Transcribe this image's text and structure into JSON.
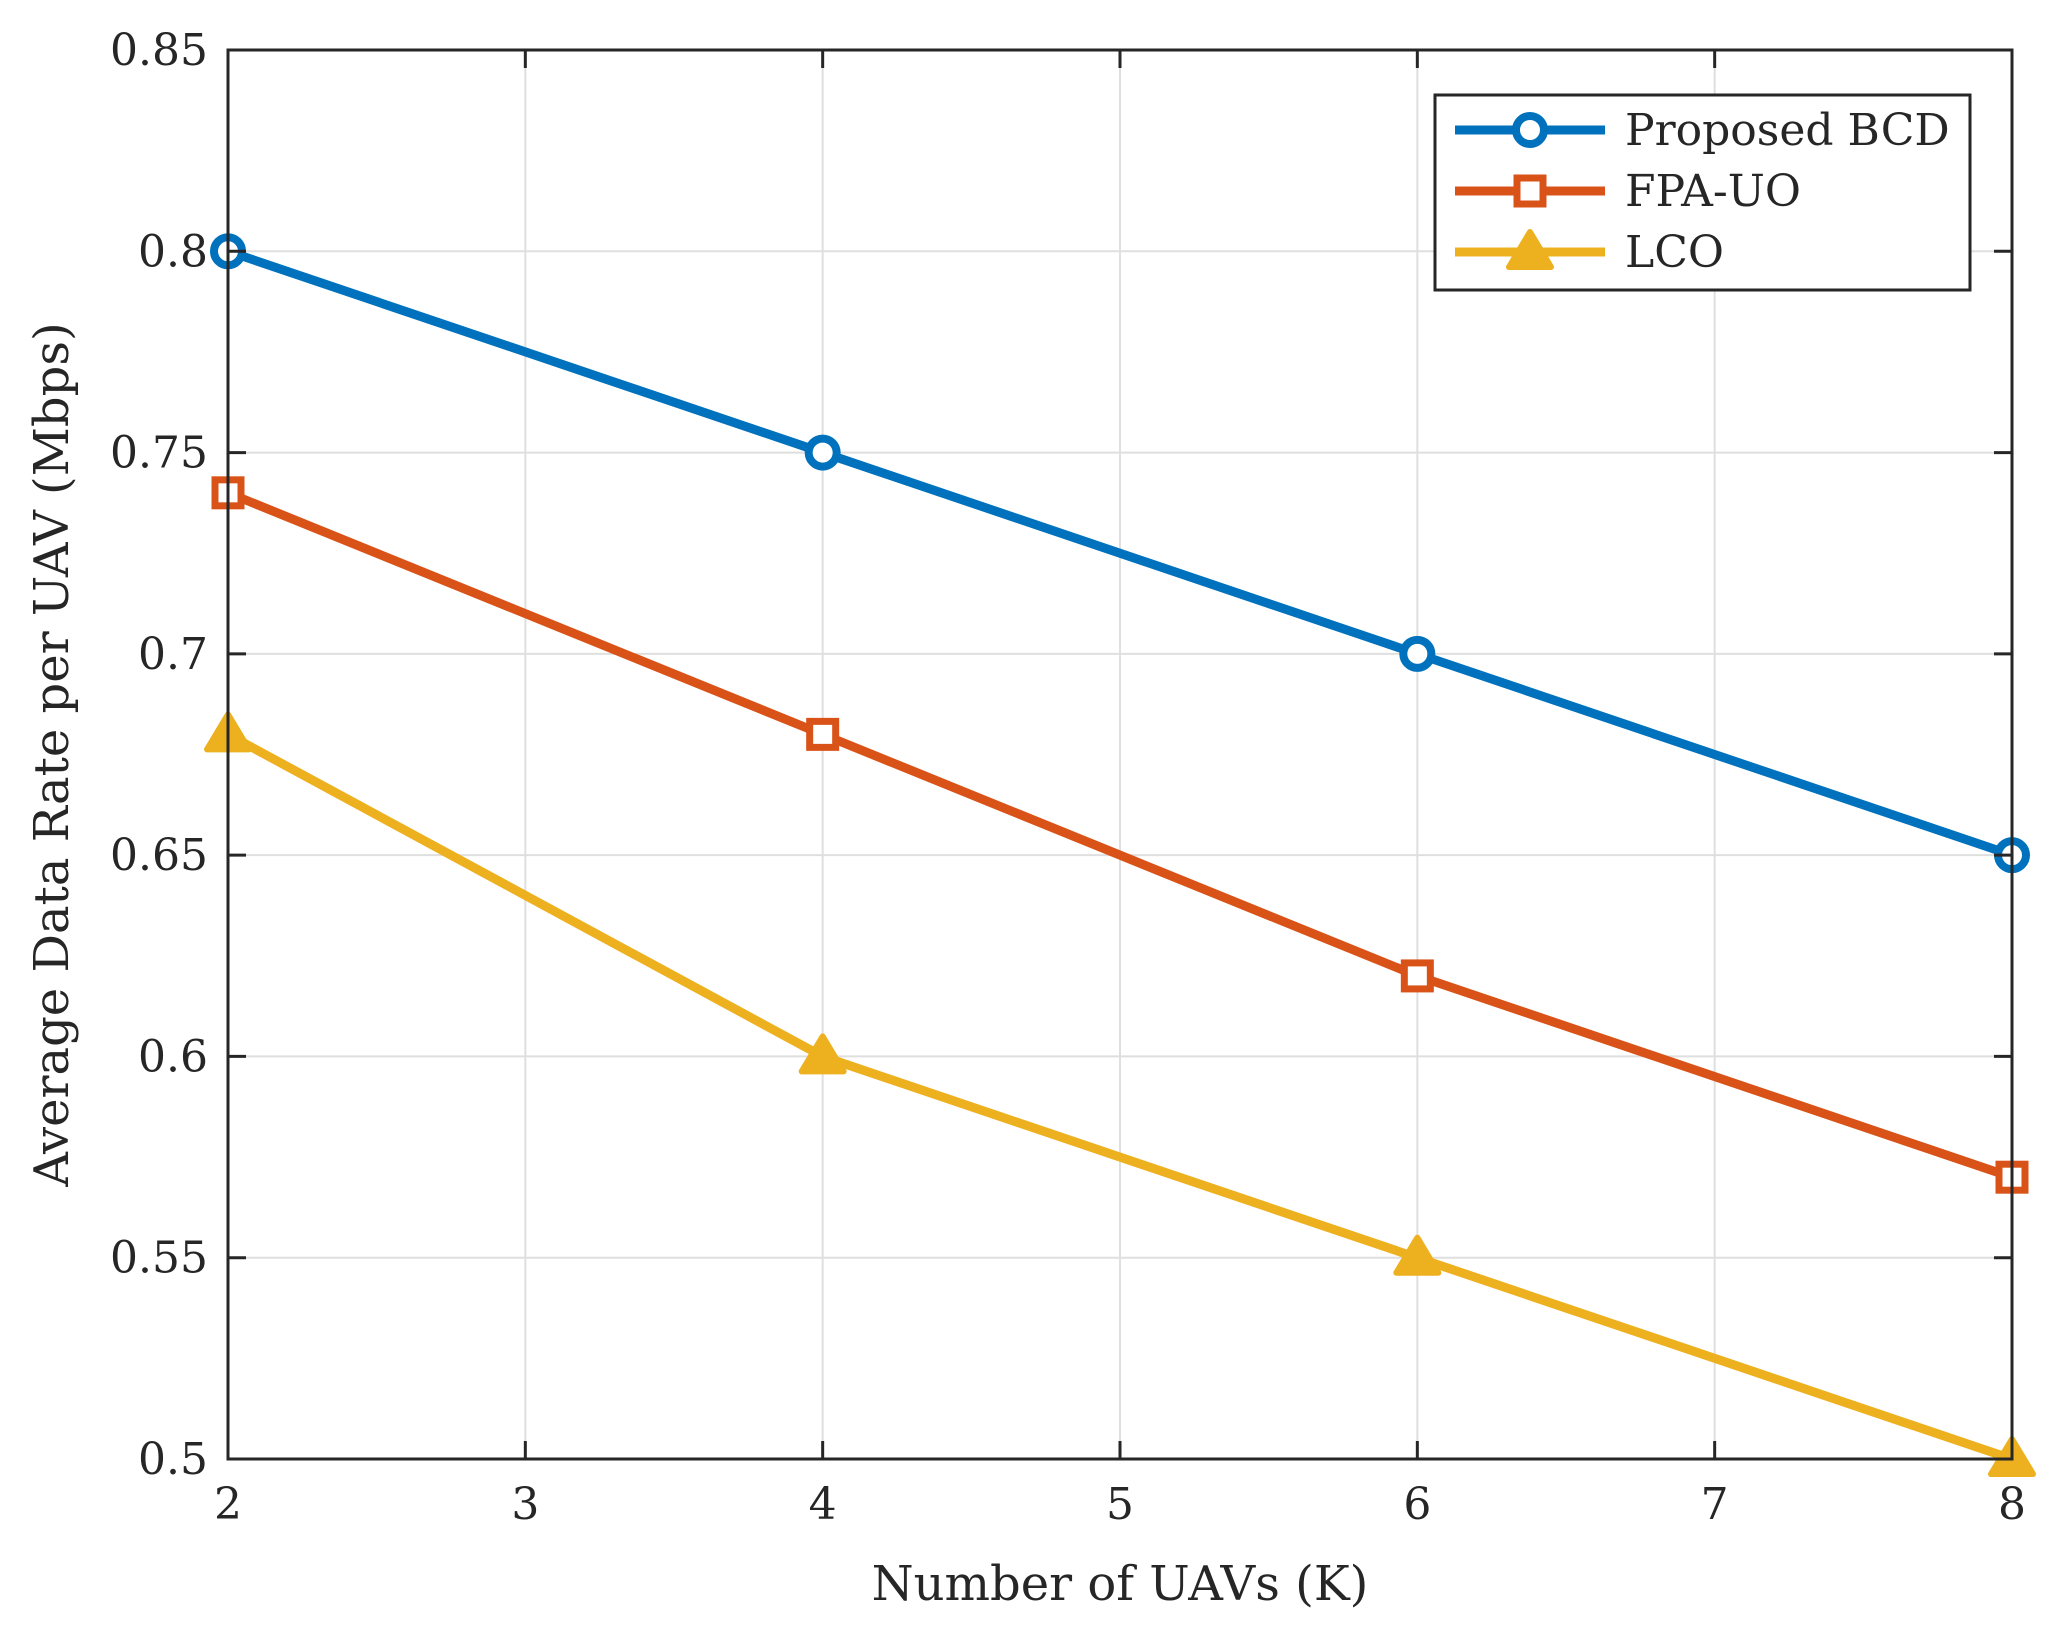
{
  "chart_data": {
    "type": "line",
    "xlabel": "Number of UAVs (K)",
    "ylabel": "Average Data Rate per UAV (Mbps)",
    "xlim": [
      2,
      8
    ],
    "ylim": [
      0.5,
      0.85
    ],
    "xticks": [
      "2",
      "3",
      "4",
      "5",
      "6",
      "7",
      "8"
    ],
    "yticks": [
      "0.5",
      "0.55",
      "0.6",
      "0.65",
      "0.7",
      "0.75",
      "0.8",
      "0.85"
    ],
    "x": [
      2,
      4,
      6,
      8
    ],
    "grid": true,
    "legend_position": "top-right",
    "series": [
      {
        "name": "Proposed BCD",
        "values": [
          0.8,
          0.75,
          0.7,
          0.65
        ],
        "color": "#0072BD",
        "marker": "circle"
      },
      {
        "name": "FPA-UO",
        "values": [
          0.74,
          0.68,
          0.62,
          0.57
        ],
        "color": "#D95319",
        "marker": "square"
      },
      {
        "name": "LCO",
        "values": [
          0.68,
          0.6,
          0.55,
          0.5
        ],
        "color": "#EDB120",
        "marker": "triangle"
      }
    ]
  }
}
